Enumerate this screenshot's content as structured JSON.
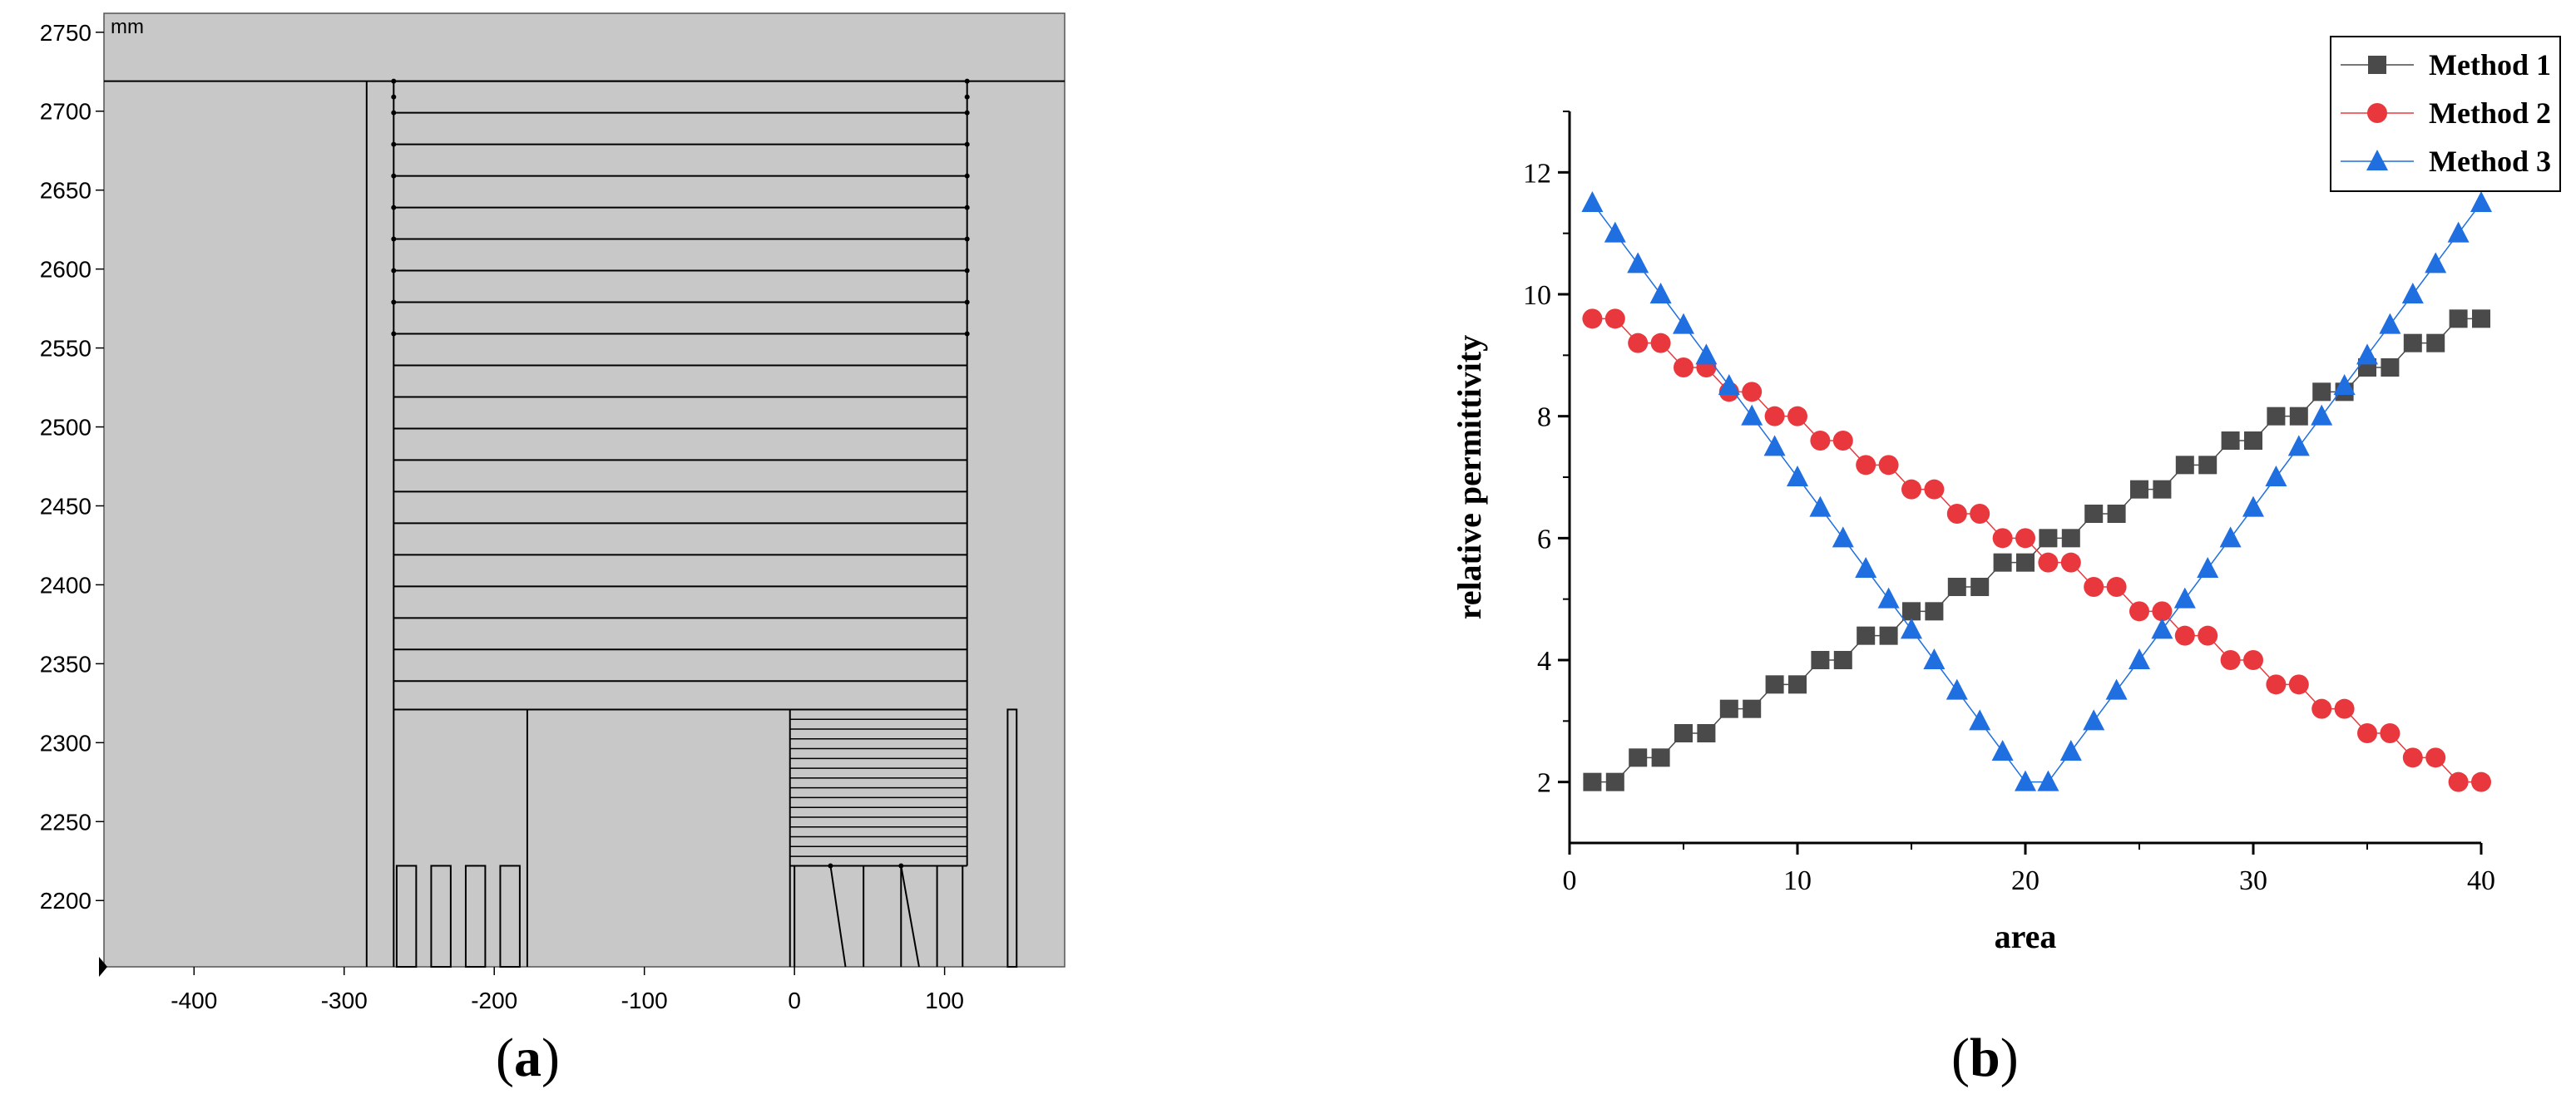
{
  "panel_a": {
    "label_open": "(",
    "label_letter": "a",
    "label_close": ")",
    "unit": "mm",
    "background_color": "#c8c8c8",
    "line_color": "#000000"
  },
  "panel_b": {
    "label_open": "(",
    "label_letter": "b",
    "label_close": ")"
  },
  "chart_data": [
    {
      "type": "diagram",
      "unit": "mm",
      "xlim": [
        -460,
        180
      ],
      "ylim": [
        2158,
        2762
      ],
      "xticks": [
        -400,
        -300,
        -200,
        -100,
        0,
        100
      ],
      "xtick_labels": [
        "-400",
        "-300",
        "-200",
        "-100",
        "0",
        "100"
      ],
      "yticks": [
        2200,
        2250,
        2300,
        2350,
        2400,
        2450,
        2500,
        2550,
        2600,
        2650,
        2700,
        2750
      ],
      "ytick_labels": [
        "2200",
        "2250",
        "2300",
        "2350",
        "2400",
        "2450",
        "2500",
        "2550",
        "2600",
        "2650",
        "2700",
        "2750"
      ],
      "grid": false
    },
    {
      "type": "scatter",
      "xlabel": "area",
      "ylabel": "relative permittivity",
      "xlim": [
        0,
        40
      ],
      "ylim": [
        1,
        13
      ],
      "xticks": [
        0,
        10,
        20,
        30,
        40
      ],
      "yticks": [
        2,
        4,
        6,
        8,
        10,
        12
      ],
      "legend_position": "top-right",
      "grid": false,
      "x": [
        1,
        2,
        3,
        4,
        5,
        6,
        7,
        8,
        9,
        10,
        11,
        12,
        13,
        14,
        15,
        16,
        17,
        18,
        19,
        20,
        21,
        22,
        23,
        24,
        25,
        26,
        27,
        28,
        29,
        30,
        31,
        32,
        33,
        34,
        35,
        36,
        37,
        38,
        39,
        40
      ],
      "series": [
        {
          "name": "Method 1",
          "marker": "square",
          "color": "#4a4a4a",
          "values": [
            2.0,
            2.0,
            2.4,
            2.4,
            2.8,
            2.8,
            3.2,
            3.2,
            3.6,
            3.6,
            4.0,
            4.0,
            4.4,
            4.4,
            4.8,
            4.8,
            5.2,
            5.2,
            5.6,
            5.6,
            6.0,
            6.0,
            6.4,
            6.4,
            6.8,
            6.8,
            7.2,
            7.2,
            7.6,
            7.6,
            8.0,
            8.0,
            8.4,
            8.4,
            8.8,
            8.8,
            9.2,
            9.2,
            9.6,
            9.6
          ]
        },
        {
          "name": "Method 2",
          "marker": "circle",
          "color": "#e8383d",
          "values": [
            9.6,
            9.6,
            9.2,
            9.2,
            8.8,
            8.8,
            8.4,
            8.4,
            8.0,
            8.0,
            7.6,
            7.6,
            7.2,
            7.2,
            6.8,
            6.8,
            6.4,
            6.4,
            6.0,
            6.0,
            5.6,
            5.6,
            5.2,
            5.2,
            4.8,
            4.8,
            4.4,
            4.4,
            4.0,
            4.0,
            3.6,
            3.6,
            3.2,
            3.2,
            2.8,
            2.8,
            2.4,
            2.4,
            2.0,
            2.0
          ]
        },
        {
          "name": "Method 3",
          "marker": "triangle",
          "color": "#1f6fe0",
          "values": [
            11.5,
            11.0,
            10.5,
            10.0,
            9.5,
            9.0,
            8.5,
            8.0,
            7.5,
            7.0,
            6.5,
            6.0,
            5.5,
            5.0,
            4.5,
            4.0,
            3.5,
            3.0,
            2.5,
            2.0,
            2.0,
            2.5,
            3.0,
            3.5,
            4.0,
            4.5,
            5.0,
            5.5,
            6.0,
            6.5,
            7.0,
            7.5,
            8.0,
            8.5,
            9.0,
            9.5,
            10.0,
            10.5,
            11.0,
            11.5
          ]
        }
      ]
    }
  ]
}
